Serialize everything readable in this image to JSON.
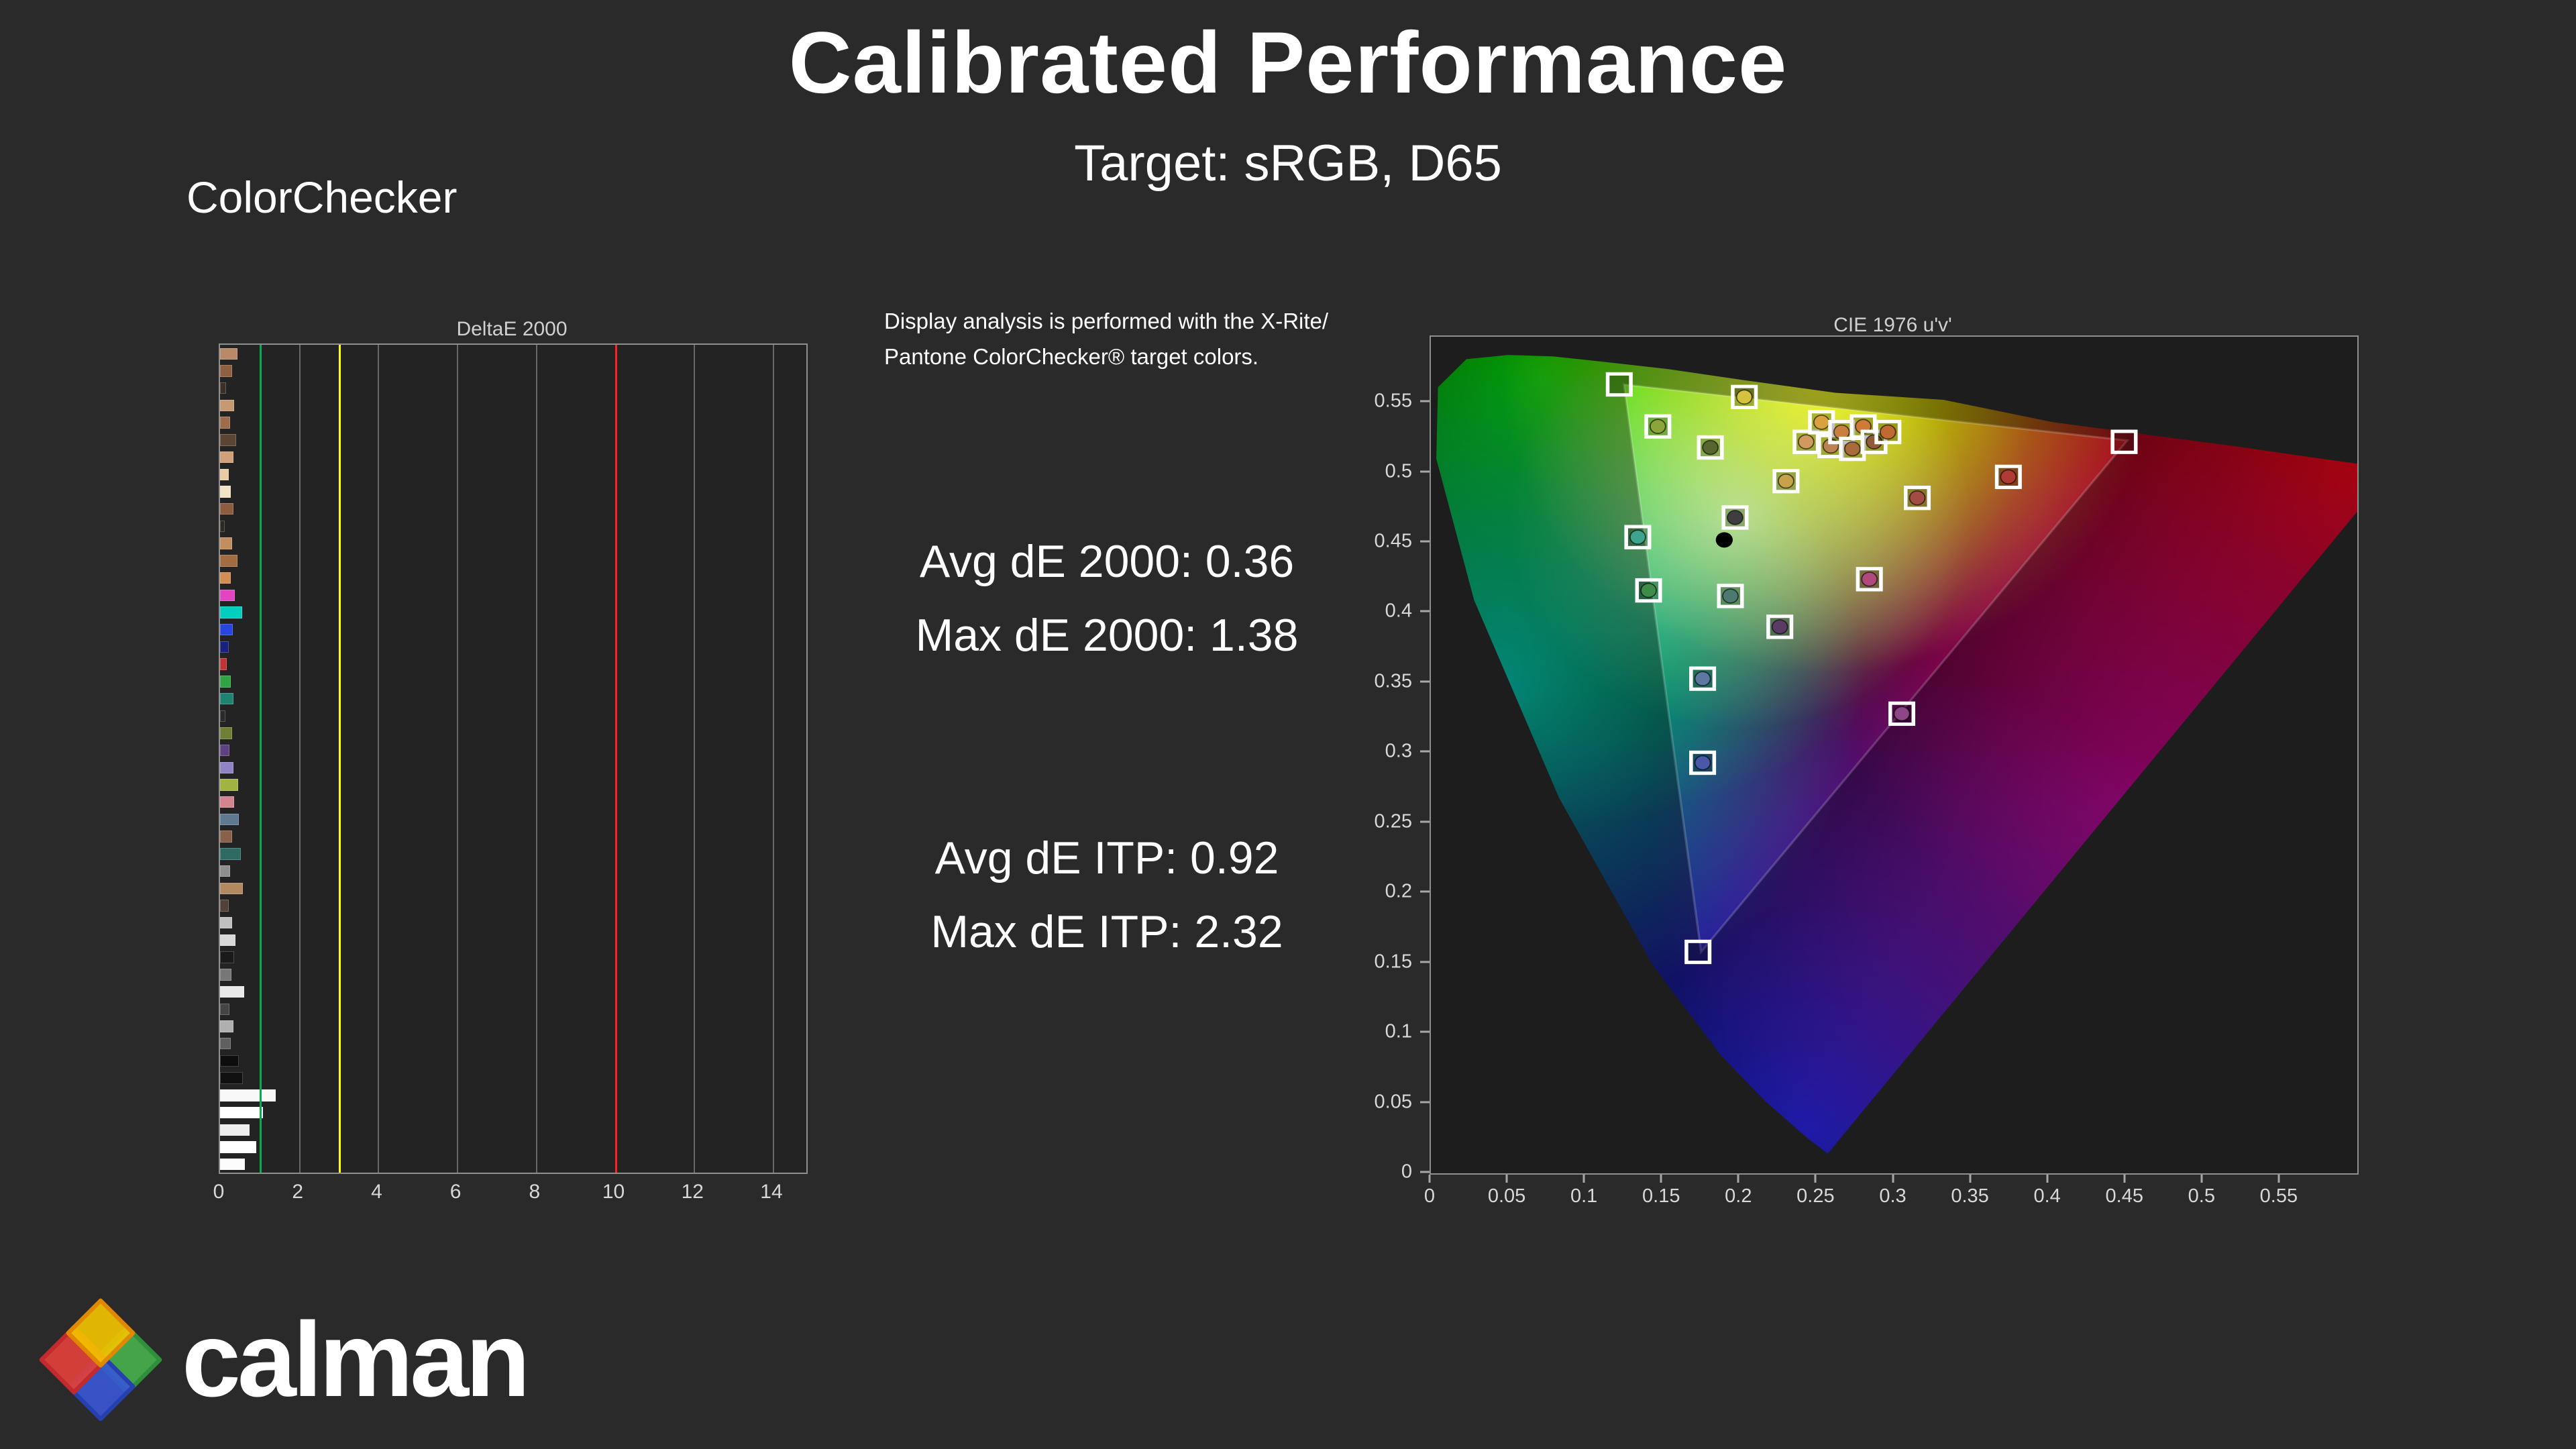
{
  "page": {
    "title": "Calibrated Performance",
    "subtitle": "Target: sRGB, D65",
    "section_label": "ColorChecker",
    "background": "#2a2a2a"
  },
  "info": {
    "line1": "Display analysis is performed with the X-Rite/",
    "line2": "Pantone ColorChecker® target colors."
  },
  "stats": {
    "avg_de2000": "Avg dE 2000: 0.36",
    "max_de2000": "Max dE 2000: 1.38",
    "avg_deitp": "Avg dE ITP: 0.92",
    "max_deitp": "Max dE ITP: 2.32"
  },
  "logo": {
    "text": "calman"
  },
  "chart_data": [
    {
      "type": "bar",
      "title": "DeltaE 2000",
      "orientation": "horizontal",
      "xlim": [
        0,
        14.85
      ],
      "x_ticks": [
        "0",
        "2",
        "4",
        "6",
        "8",
        "10",
        "12",
        "14"
      ],
      "grid": true,
      "reference_lines": [
        {
          "value": 1,
          "color": "#00b050"
        },
        {
          "value": 3,
          "color": "#ffff00"
        },
        {
          "value": 10,
          "color": "#ff2020"
        }
      ],
      "bars": [
        {
          "c": "#b98a68",
          "v": 0.4
        },
        {
          "c": "#8f5f40",
          "v": 0.28
        },
        {
          "c": "#3c2f26",
          "v": 0.12
        },
        {
          "c": "#c59a72",
          "v": 0.33
        },
        {
          "c": "#9d6c4a",
          "v": 0.22
        },
        {
          "c": "#5c4434",
          "v": 0.38
        },
        {
          "c": "#d0a078",
          "v": 0.3
        },
        {
          "c": "#e9cba6",
          "v": 0.18
        },
        {
          "c": "#f2e2c6",
          "v": 0.24
        },
        {
          "c": "#8e5c3e",
          "v": 0.31
        },
        {
          "c": "#2f2721",
          "v": 0.09
        },
        {
          "c": "#c28e5e",
          "v": 0.27
        },
        {
          "c": "#a26c42",
          "v": 0.41
        },
        {
          "c": "#d38c52",
          "v": 0.23
        },
        {
          "c": "#e344c4",
          "v": 0.34
        },
        {
          "c": "#00cfc0",
          "v": 0.52
        },
        {
          "c": "#2746e0",
          "v": 0.29
        },
        {
          "c": "#16227e",
          "v": 0.19
        },
        {
          "c": "#c23434",
          "v": 0.14
        },
        {
          "c": "#2fa344",
          "v": 0.24
        },
        {
          "c": "#1f8372",
          "v": 0.31
        },
        {
          "c": "#2a2a2a",
          "v": 0.11
        },
        {
          "c": "#6f7f33",
          "v": 0.27
        },
        {
          "c": "#5f4181",
          "v": 0.21
        },
        {
          "c": "#9184c4",
          "v": 0.3
        },
        {
          "c": "#a2b340",
          "v": 0.42
        },
        {
          "c": "#d2848f",
          "v": 0.33
        },
        {
          "c": "#5f7992",
          "v": 0.44
        },
        {
          "c": "#8a6148",
          "v": 0.28
        },
        {
          "c": "#2f6a62",
          "v": 0.49
        },
        {
          "c": "#8f8f8f",
          "v": 0.22
        },
        {
          "c": "#b28a62",
          "v": 0.55
        },
        {
          "c": "#524139",
          "v": 0.18
        },
        {
          "c": "#bfc0c2",
          "v": 0.28
        },
        {
          "c": "#d9d9d9",
          "v": 0.36
        },
        {
          "c": "#1a1a1a",
          "v": 0.33
        },
        {
          "c": "#777777",
          "v": 0.26
        },
        {
          "c": "#e9e9e9",
          "v": 0.58
        },
        {
          "c": "#444444",
          "v": 0.21
        },
        {
          "c": "#b0b0b0",
          "v": 0.3
        },
        {
          "c": "#606060",
          "v": 0.24
        },
        {
          "c": "#0d0d0d",
          "v": 0.45
        },
        {
          "c": "#111111",
          "v": 0.55
        },
        {
          "c": "#f8f8f8",
          "v": 1.38
        },
        {
          "c": "#ffffff",
          "v": 1.05
        },
        {
          "c": "#eeeeee",
          "v": 0.72
        },
        {
          "c": "#ffffff",
          "v": 0.88
        },
        {
          "c": "#fcfcfc",
          "v": 0.6
        }
      ]
    },
    {
      "type": "scatter",
      "title": "CIE 1976 u'v'",
      "xlim": [
        0,
        0.6
      ],
      "ylim": [
        0,
        0.597
      ],
      "x_ticks": [
        "0",
        "0.05",
        "0.1",
        "0.15",
        "0.2",
        "0.25",
        "0.3",
        "0.35",
        "0.4",
        "0.45",
        "0.5",
        "0.55"
      ],
      "y_ticks": [
        "0",
        "0.05",
        "0.1",
        "0.15",
        "0.2",
        "0.25",
        "0.3",
        "0.35",
        "0.4",
        "0.45",
        "0.5",
        "0.55"
      ],
      "srgb_triangle": {
        "r": [
          0.451,
          0.523
        ],
        "g": [
          0.125,
          0.563
        ],
        "b": [
          0.175,
          0.158
        ]
      },
      "white_point_marker": [
        0.19,
        0.452
      ],
      "points": [
        {
          "u": 0.122,
          "v": 0.563,
          "s": true,
          "d": null
        },
        {
          "u": 0.147,
          "v": 0.533,
          "s": true,
          "d": "#8ca53a"
        },
        {
          "u": 0.181,
          "v": 0.518,
          "s": true,
          "d": "#55662e"
        },
        {
          "u": 0.203,
          "v": 0.554,
          "s": true,
          "d": "#d6c23e"
        },
        {
          "u": 0.23,
          "v": 0.494,
          "s": true,
          "d": "#c8a24a"
        },
        {
          "u": 0.243,
          "v": 0.522,
          "s": true,
          "d": "#d09a5e"
        },
        {
          "u": 0.253,
          "v": 0.536,
          "s": true,
          "d": "#d9a23e"
        },
        {
          "u": 0.259,
          "v": 0.519,
          "s": true,
          "d": "#bc8152"
        },
        {
          "u": 0.266,
          "v": 0.529,
          "s": true,
          "d": "#c97f3f"
        },
        {
          "u": 0.273,
          "v": 0.517,
          "s": true,
          "d": "#a96a3e"
        },
        {
          "u": 0.28,
          "v": 0.533,
          "s": true,
          "d": "#cf7a35"
        },
        {
          "u": 0.287,
          "v": 0.522,
          "s": true,
          "d": "#8e5a38"
        },
        {
          "u": 0.296,
          "v": 0.529,
          "s": true,
          "d": "#c06a32"
        },
        {
          "u": 0.315,
          "v": 0.482,
          "s": true,
          "d": "#a34d42"
        },
        {
          "u": 0.374,
          "v": 0.497,
          "s": true,
          "d": "#b03a34"
        },
        {
          "u": 0.449,
          "v": 0.522,
          "s": true,
          "d": null
        },
        {
          "u": 0.197,
          "v": 0.468,
          "s": true,
          "d": "#3e3e3e"
        },
        {
          "u": 0.134,
          "v": 0.454,
          "s": true,
          "d": "#3fa48d"
        },
        {
          "u": 0.141,
          "v": 0.416,
          "s": true,
          "d": "#3e8c4a"
        },
        {
          "u": 0.194,
          "v": 0.412,
          "s": true,
          "d": "#4d7a70"
        },
        {
          "u": 0.226,
          "v": 0.39,
          "s": true,
          "d": "#5c3a66"
        },
        {
          "u": 0.284,
          "v": 0.424,
          "s": true,
          "d": "#b2497c"
        },
        {
          "u": 0.176,
          "v": 0.353,
          "s": true,
          "d": "#5d79a2"
        },
        {
          "u": 0.305,
          "v": 0.328,
          "s": true,
          "d": "#8d4788"
        },
        {
          "u": 0.176,
          "v": 0.293,
          "s": true,
          "d": "#4a58a8"
        },
        {
          "u": 0.173,
          "v": 0.158,
          "s": true,
          "d": null
        }
      ]
    }
  ]
}
